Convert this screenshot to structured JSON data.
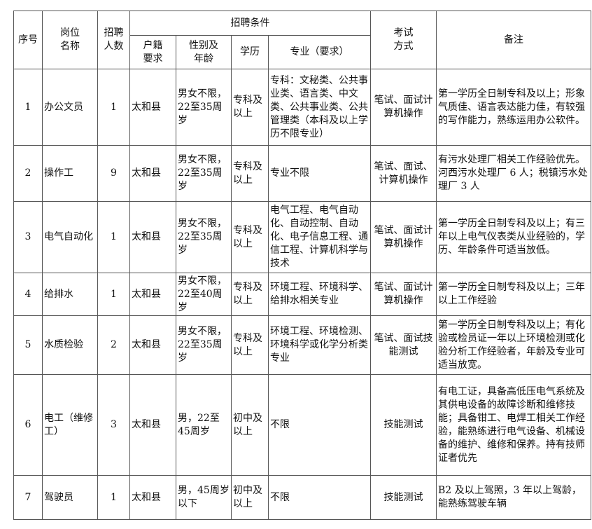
{
  "header": {
    "seq": "序号",
    "position": "岗位\n名称",
    "count": "招聘\n人数",
    "conditions": "招聘条件",
    "household": "户籍\n要求",
    "gender_age": "性别及\n年龄",
    "education": "学历",
    "major": "专业（要求）",
    "exam": "考试\n方式",
    "remarks": "备注"
  },
  "rows": [
    {
      "seq": "1",
      "position": "办公文员",
      "count": "1",
      "household": "太和县",
      "gender_age": "男女不限，22至35周岁",
      "education": "专科及以上",
      "major": "专科：文秘类、公共事业类、语言类、中文类、公共事业类、公共管理类（本科及以上学历不限专业）",
      "exam": "笔试、面试计算机操作",
      "remarks": "第一学历全日制专科及以上；形象气质佳、语言表达能力佳，有较强的写作能力，熟练运用办公软件。"
    },
    {
      "seq": "2",
      "position": "操作工",
      "count": "9",
      "household": "太和县",
      "gender_age": "男女不限，22至35周岁",
      "education": "专科及以上",
      "major": "专业不限",
      "exam": "笔试、面试、计算机操作",
      "remarks": "有污水处理厂相关工作经验优先。河西污水处理厂 6 人；税镇污水处理厂 3 人"
    },
    {
      "seq": "3",
      "position": "电气自动化",
      "count": "1",
      "household": "太和县",
      "gender_age": "男女不限，22至35周岁",
      "education": "专科及以上",
      "major": "电气工程、电气自动化、自动控制、自动化、电子信息工程、通信工程、计算机科学与技术",
      "exam": "笔试、面试计算机操作",
      "remarks": "第一学历全日制专科及以上；有三年以上电气仪表类从业经验的，学历、年龄条件可适当放低。"
    },
    {
      "seq": "4",
      "position": "给排水",
      "count": "1",
      "household": "太和县",
      "gender_age": "男女不限，22至40周岁",
      "education": "专科及以上",
      "major": "环境工程、环境科学、给排水相关专业",
      "exam": "笔试、面试计算机操作",
      "remarks": "第一学历全日制专科及以上；三年以上工作经验"
    },
    {
      "seq": "5",
      "position": "水质检验",
      "count": "2",
      "household": "太和县",
      "gender_age": "男女不限，22至35周岁",
      "education": "专科及以上",
      "major": "环境工程、环境检测、环境科学或化学分析类专业",
      "exam": "笔试、面试技能测试",
      "remarks": "第一学历全日制专科及以上；有化验或检员证一年以上环境检测或化验分析工作经验者，年龄及专业可适当放宽。"
    },
    {
      "seq": "6",
      "position": "电工（维修工）",
      "count": "3",
      "household": "太和县",
      "gender_age": "男，22至45周岁",
      "education": "初中及以上",
      "major": "不限",
      "exam": "技能测试",
      "remarks": "有电工证，具备高低压电气系统及其供电设备的故障诊断和维修技能；具备钳工、电焊工相关工作经验，能熟练进行电气设备、机械设备的维护、维修和保养。持有技师证者优先"
    },
    {
      "seq": "7",
      "position": "驾驶员",
      "count": "1",
      "household": "太和县",
      "gender_age": "男，45周岁以下",
      "education": "初中及以上",
      "major": "不限",
      "exam": "技能测试",
      "remarks": "B2 及以上驾照，3 年以上驾龄，能熟练驾驶车辆"
    }
  ]
}
